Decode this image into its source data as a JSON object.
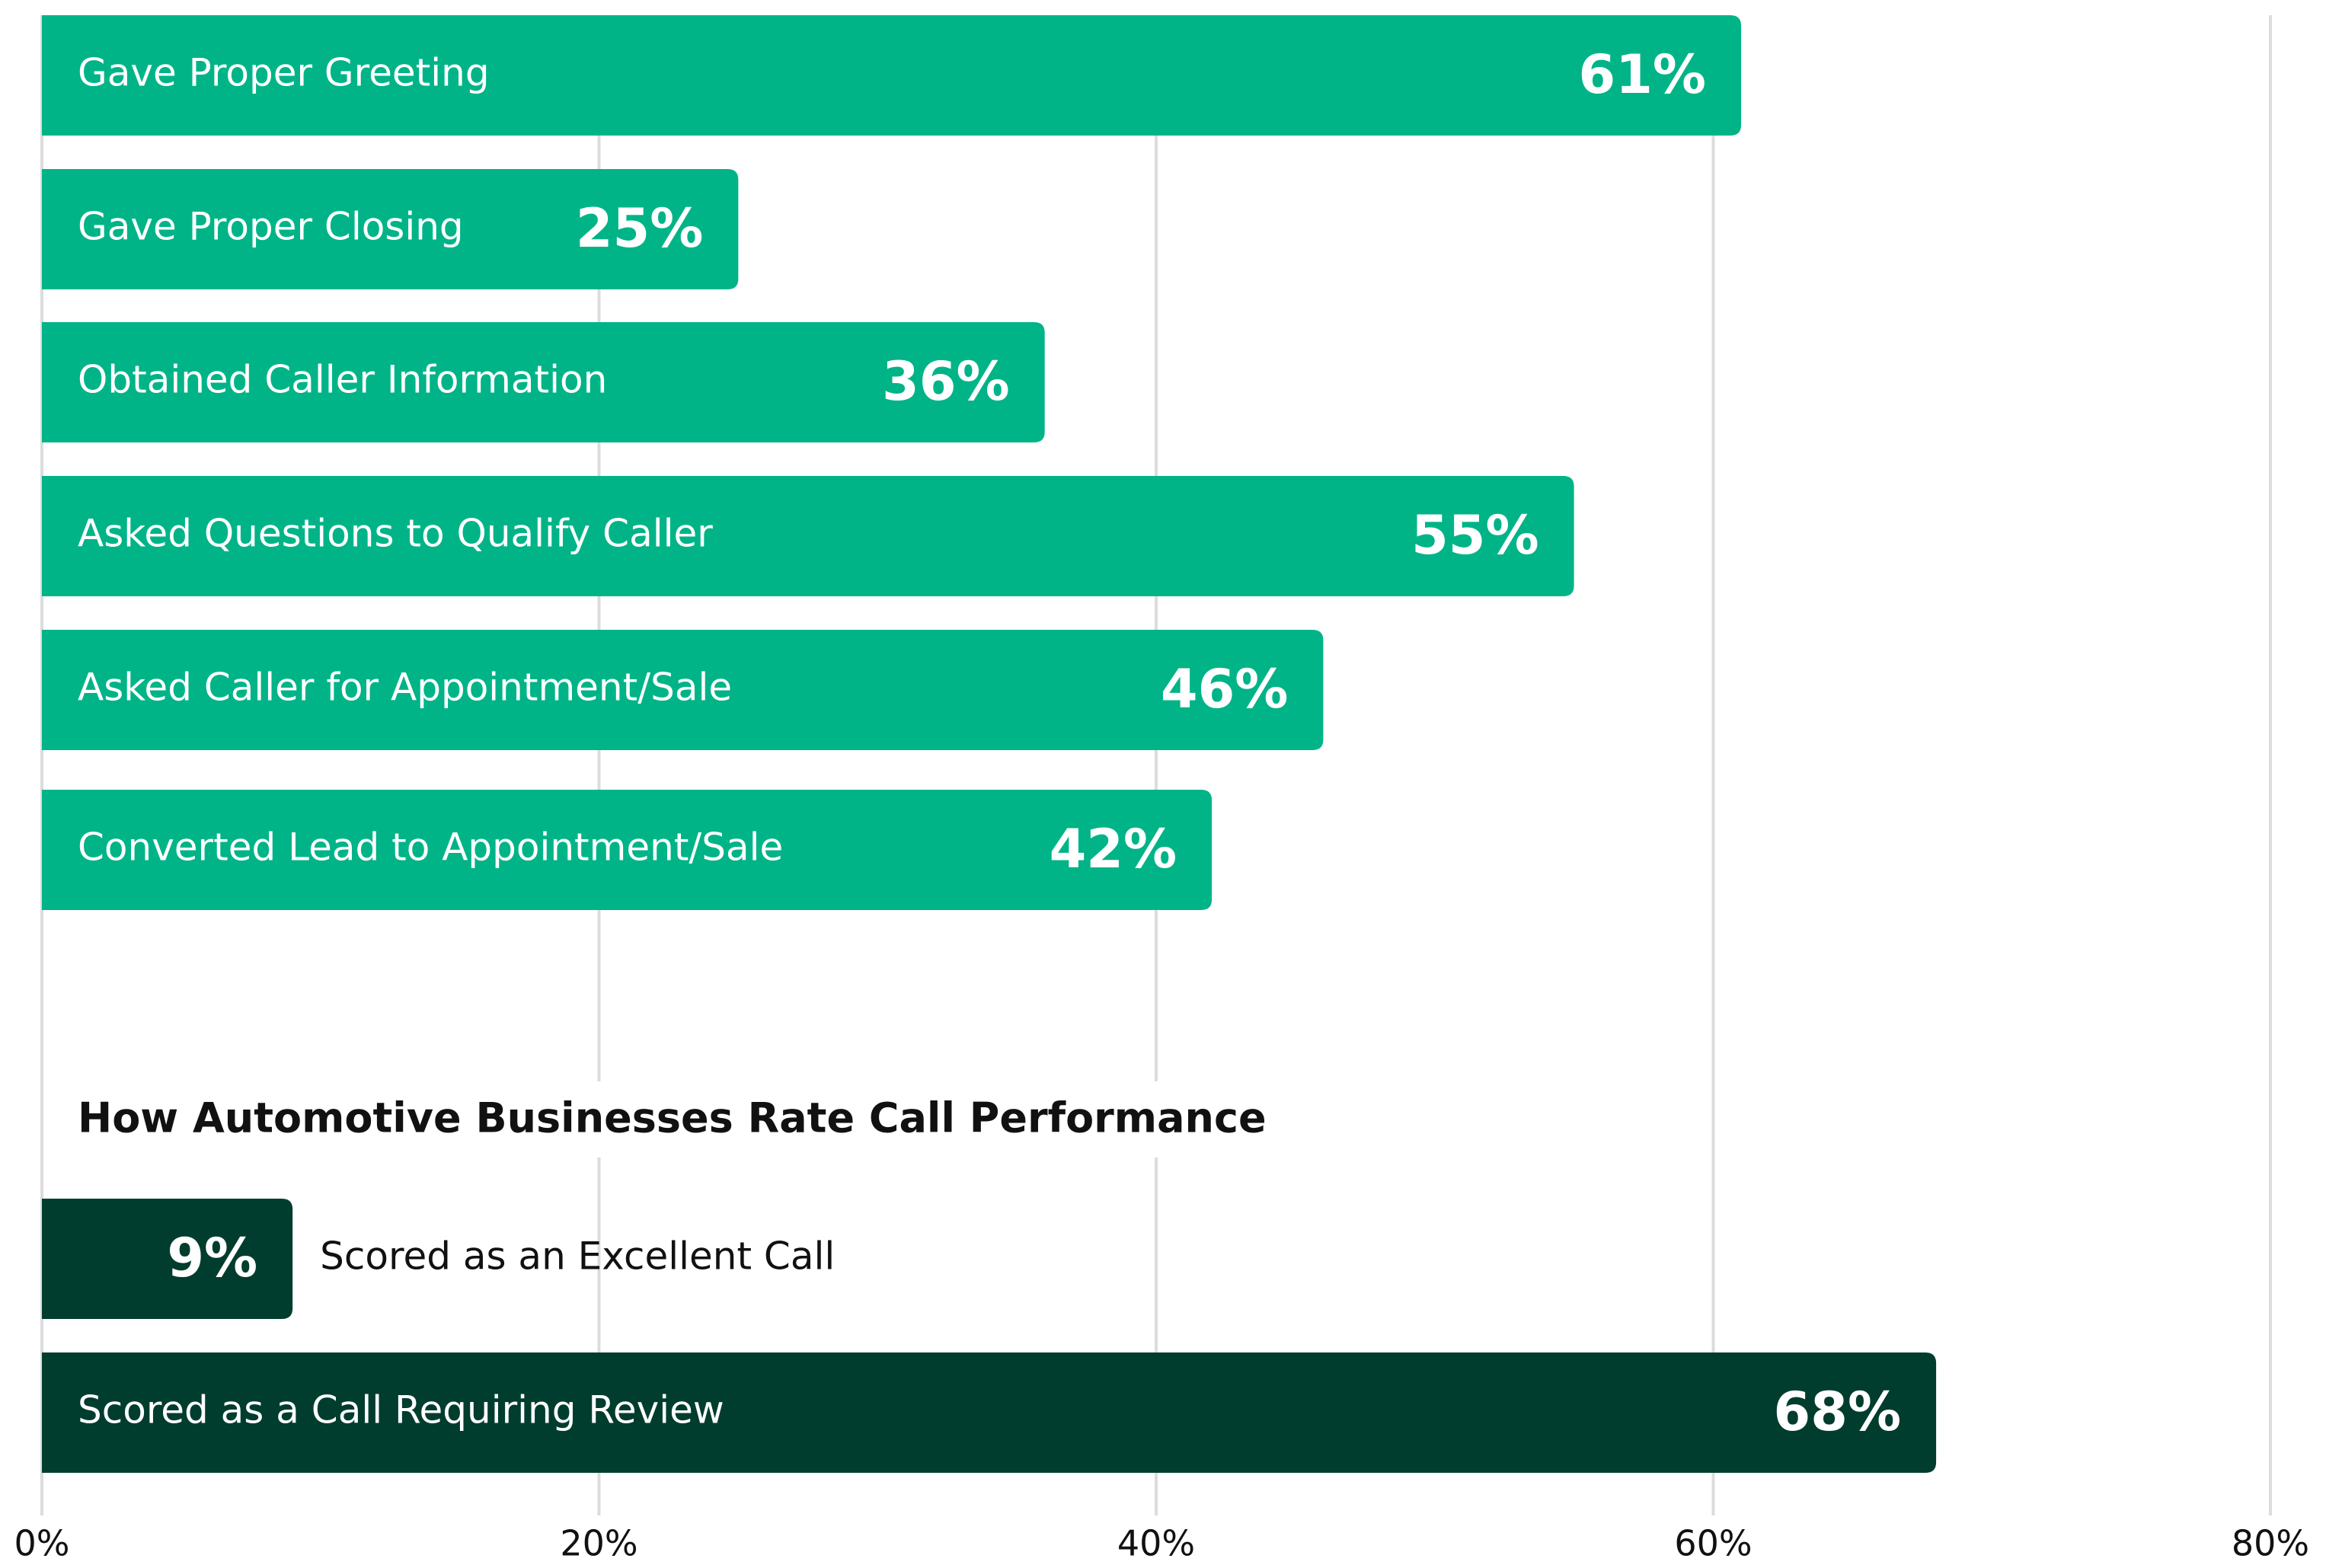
{
  "chart_data": {
    "type": "bar",
    "orientation": "horizontal",
    "xlim": [
      0,
      80
    ],
    "xticks": [
      {
        "value": 0,
        "label": "0%"
      },
      {
        "value": 20,
        "label": "20%"
      },
      {
        "value": 40,
        "label": "40%"
      },
      {
        "value": 60,
        "label": "60%"
      },
      {
        "value": 80,
        "label": "80%"
      }
    ],
    "grid": true,
    "groups": [
      {
        "color": "#00b488",
        "categories": [
          "Gave Proper Greeting",
          "Gave Proper Closing",
          "Obtained Caller Information",
          "Asked Questions to Qualify Caller",
          "Asked Caller for Appointment/Sale",
          "Converted Lead to Appointment/Sale"
        ],
        "values": [
          61,
          25,
          36,
          55,
          46,
          42
        ],
        "value_labels": [
          "61%",
          "25%",
          "36%",
          "55%",
          "46%",
          "42%"
        ]
      },
      {
        "title": "How Automotive Businesses Rate Call Performance",
        "color": "#003d2e",
        "categories": [
          "Scored as an Excellent Call",
          "Scored as a Call Requiring Review"
        ],
        "values": [
          9,
          68
        ],
        "value_labels": [
          "9%",
          "68%"
        ]
      }
    ]
  }
}
